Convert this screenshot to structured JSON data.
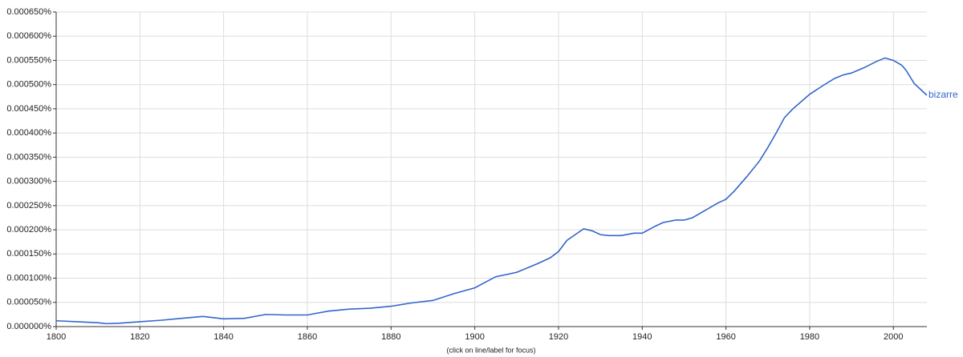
{
  "chart_data": {
    "type": "line",
    "note": "(click on line/label for focus)",
    "x": [
      1800,
      1805,
      1810,
      1812,
      1815,
      1820,
      1825,
      1830,
      1835,
      1840,
      1845,
      1850,
      1855,
      1860,
      1865,
      1870,
      1875,
      1880,
      1885,
      1890,
      1895,
      1900,
      1905,
      1910,
      1915,
      1918,
      1920,
      1922,
      1924,
      1926,
      1928,
      1930,
      1932,
      1935,
      1938,
      1940,
      1943,
      1945,
      1948,
      1950,
      1952,
      1955,
      1958,
      1960,
      1962,
      1965,
      1968,
      1970,
      1972,
      1974,
      1976,
      1978,
      1980,
      1983,
      1986,
      1988,
      1990,
      1993,
      1996,
      1998,
      2000,
      2002,
      2003,
      2005,
      2008
    ],
    "series": [
      {
        "name": "bizarre",
        "color": "#3366cc",
        "values": [
          1.2e-05,
          1e-05,
          8e-06,
          6e-06,
          7e-06,
          1e-05,
          1.3e-05,
          1.7e-05,
          2.1e-05,
          1.6e-05,
          1.7e-05,
          2.5e-05,
          2.4e-05,
          2.4e-05,
          3.2e-05,
          3.6e-05,
          3.8e-05,
          4.2e-05,
          4.9e-05,
          5.4e-05,
          6.8e-05,
          8e-05,
          0.000103,
          0.000112,
          0.00013,
          0.000142,
          0.000155,
          0.000178,
          0.00019,
          0.000202,
          0.000198,
          0.00019,
          0.000188,
          0.000188,
          0.000193,
          0.000193,
          0.000207,
          0.000215,
          0.00022,
          0.00022,
          0.000225,
          0.00024,
          0.000255,
          0.000263,
          0.00028,
          0.00031,
          0.000342,
          0.00037,
          0.0004,
          0.000432,
          0.00045,
          0.000465,
          0.00048,
          0.000497,
          0.000513,
          0.00052,
          0.000524,
          0.000535,
          0.000548,
          0.000555,
          0.00055,
          0.00054,
          0.00053,
          0.000502,
          0.000478
        ]
      }
    ],
    "xlim": [
      1800,
      2008
    ],
    "xticks": [
      1800,
      1820,
      1840,
      1860,
      1880,
      1900,
      1920,
      1940,
      1960,
      1980,
      2000
    ],
    "ylim": [
      0,
      0.00065
    ],
    "yticks": [
      {
        "value": 0,
        "label": "0.000000%"
      },
      {
        "value": 5e-05,
        "label": "0.000050%"
      },
      {
        "value": 0.0001,
        "label": "0.000100%"
      },
      {
        "value": 0.00015,
        "label": "0.000150%"
      },
      {
        "value": 0.0002,
        "label": "0.000200%"
      },
      {
        "value": 0.00025,
        "label": "0.000250%"
      },
      {
        "value": 0.0003,
        "label": "0.000300%"
      },
      {
        "value": 0.00035,
        "label": "0.000350%"
      },
      {
        "value": 0.0004,
        "label": "0.000400%"
      },
      {
        "value": 0.00045,
        "label": "0.000450%"
      },
      {
        "value": 0.0005,
        "label": "0.000500%"
      },
      {
        "value": 0.00055,
        "label": "0.000550%"
      },
      {
        "value": 0.0006,
        "label": "0.000600%"
      },
      {
        "value": 0.00065,
        "label": "0.000650%"
      }
    ],
    "grid": true
  }
}
